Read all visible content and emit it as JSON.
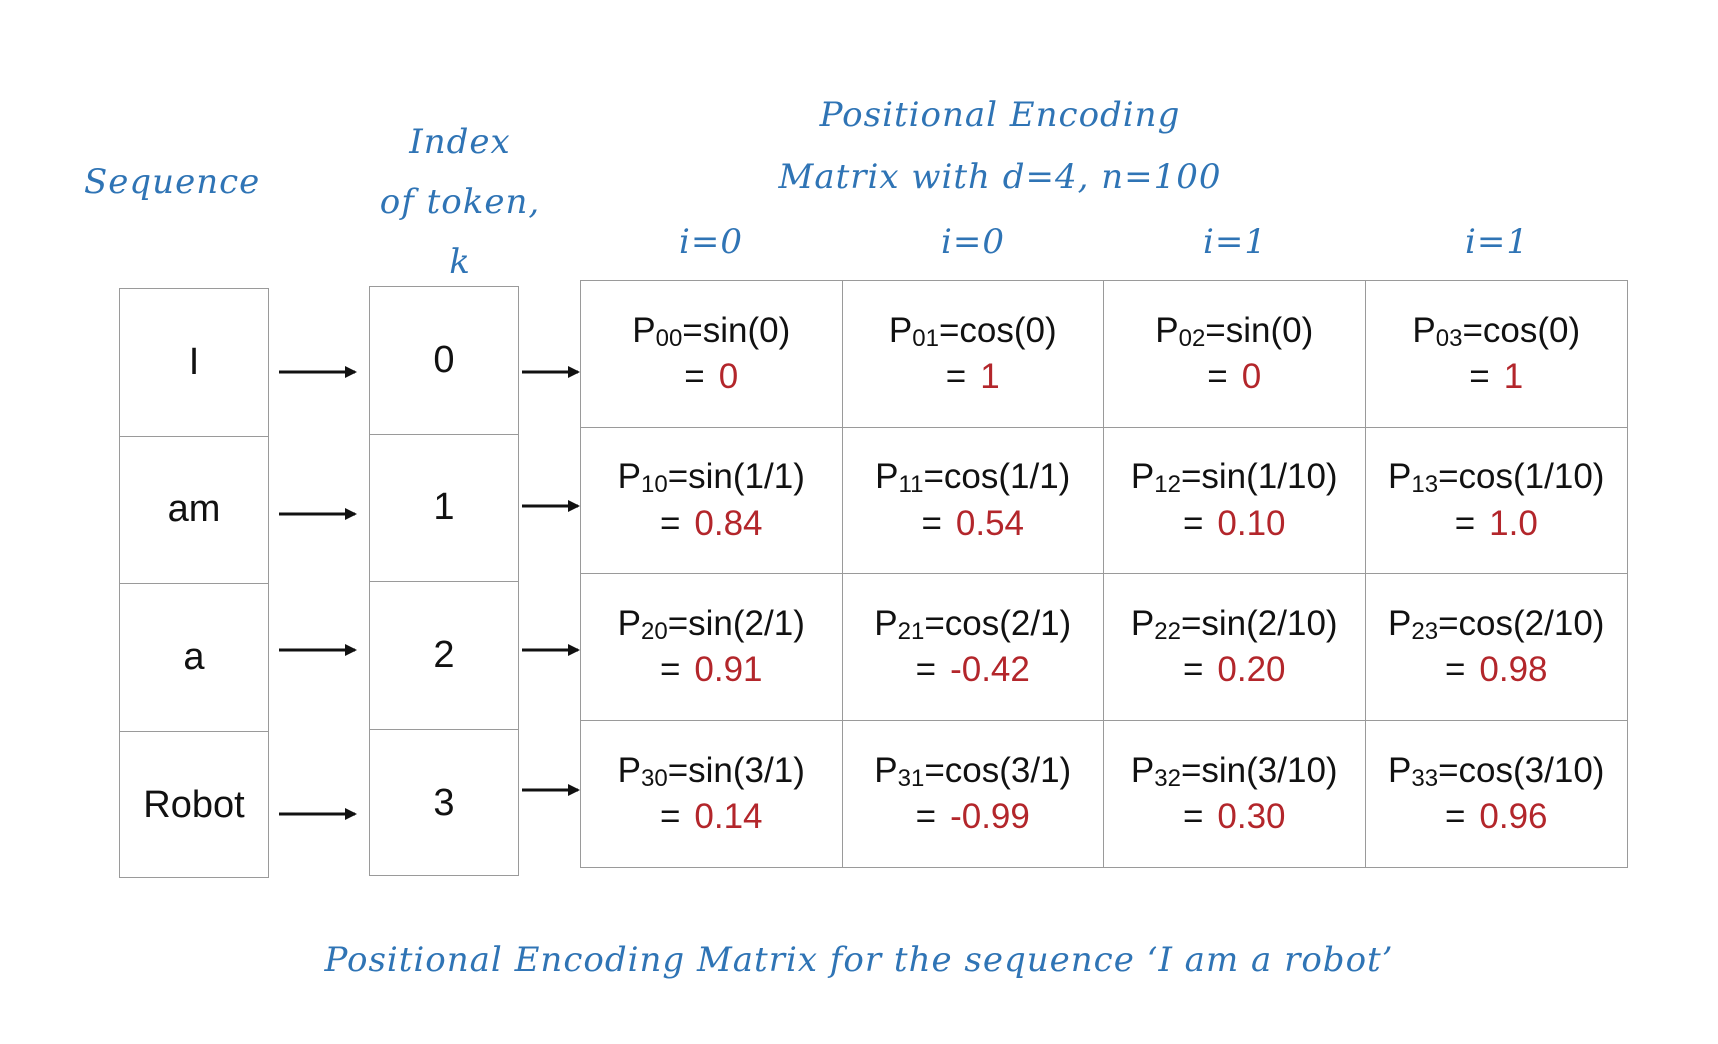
{
  "labels": {
    "sequence": "Sequence",
    "index_line1": "Index",
    "index_line2": "of token,",
    "index_line3": "k",
    "matrix_line1": "Positional Encoding",
    "matrix_line2": "Matrix with d=4, n=100",
    "caption": "Positional Encoding Matrix for the sequence ‘I am a robot’"
  },
  "column_headers": [
    "i=0",
    "i=0",
    "i=1",
    "i=1"
  ],
  "tokens": [
    "I",
    "am",
    "a",
    "Robot"
  ],
  "indices": [
    "0",
    "1",
    "2",
    "3"
  ],
  "matrix": [
    [
      {
        "p": "P",
        "sub": "00",
        "fn": "=sin(0)",
        "eq": "=",
        "val": "0"
      },
      {
        "p": "P",
        "sub": "01",
        "fn": "=cos(0)",
        "eq": "=",
        "val": "1"
      },
      {
        "p": "P",
        "sub": "02",
        "fn": "=sin(0)",
        "eq": "=",
        "val": "0"
      },
      {
        "p": "P",
        "sub": "03",
        "fn": "=cos(0)",
        "eq": "=",
        "val": "1"
      }
    ],
    [
      {
        "p": "P",
        "sub": "10",
        "fn": "=sin(1/1)",
        "eq": "=",
        "val": "0.84"
      },
      {
        "p": "P",
        "sub": "11",
        "fn": "=cos(1/1)",
        "eq": "=",
        "val": "0.54"
      },
      {
        "p": "P",
        "sub": "12",
        "fn": "=sin(1/10)",
        "eq": "=",
        "val": "0.10"
      },
      {
        "p": "P",
        "sub": "13",
        "fn": "=cos(1/10)",
        "eq": "=",
        "val": "1.0"
      }
    ],
    [
      {
        "p": "P",
        "sub": "20",
        "fn": "=sin(2/1)",
        "eq": "=",
        "val": "0.91"
      },
      {
        "p": "P",
        "sub": "21",
        "fn": "=cos(2/1)",
        "eq": "=",
        "val": "-0.42"
      },
      {
        "p": "P",
        "sub": "22",
        "fn": "=sin(2/10)",
        "eq": "=",
        "val": "0.20"
      },
      {
        "p": "P",
        "sub": "23",
        "fn": "=cos(2/10)",
        "eq": "=",
        "val": "0.98"
      }
    ],
    [
      {
        "p": "P",
        "sub": "30",
        "fn": "=sin(3/1)",
        "eq": "=",
        "val": "0.14"
      },
      {
        "p": "P",
        "sub": "31",
        "fn": "=cos(3/1)",
        "eq": "=",
        "val": "-0.99"
      },
      {
        "p": "P",
        "sub": "32",
        "fn": "=sin(3/10)",
        "eq": "=",
        "val": "0.30"
      },
      {
        "p": "P",
        "sub": "33",
        "fn": "=cos(3/10)",
        "eq": "=",
        "val": "0.96"
      }
    ]
  ],
  "colors": {
    "label_blue": "#2f74b5",
    "value_red": "#b3262b",
    "border_gray": "#9a9a9a"
  }
}
